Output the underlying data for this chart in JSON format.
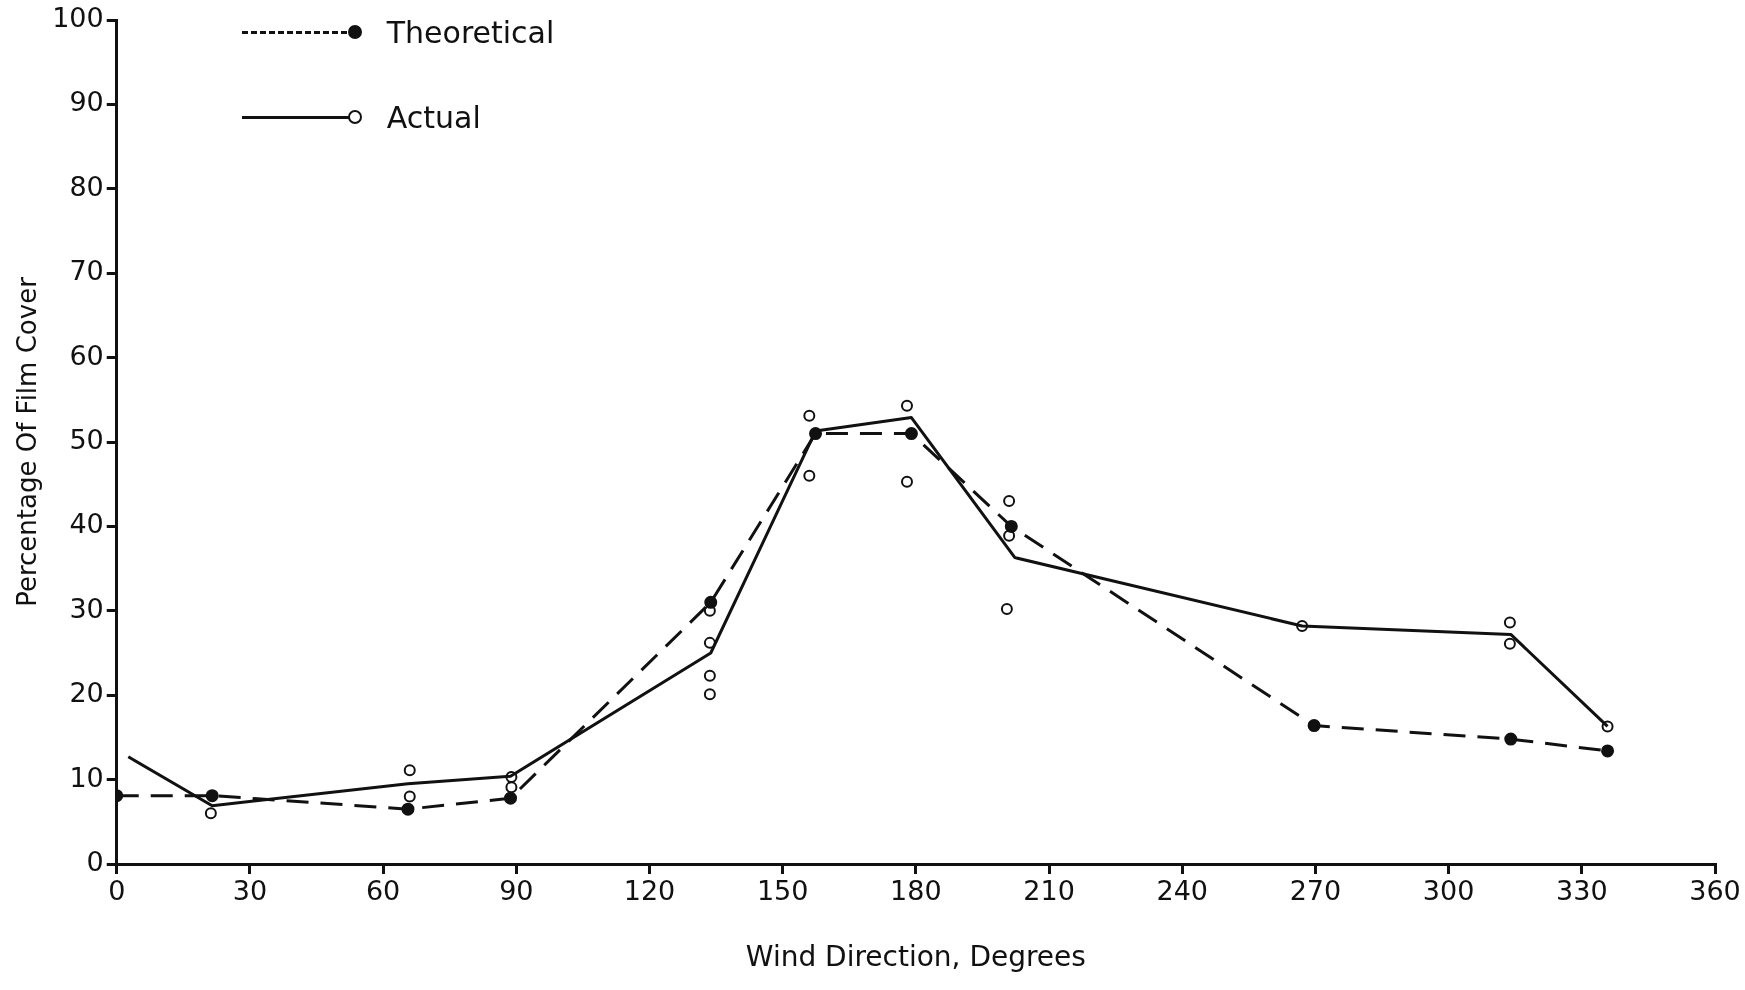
{
  "chart_data": {
    "type": "line",
    "xlabel": "Wind Direction, Degrees",
    "ylabel": "Percentage Of Film Cover",
    "xlim": [
      0,
      360
    ],
    "xticks": [
      0,
      30,
      60,
      90,
      120,
      150,
      180,
      210,
      240,
      270,
      300,
      330,
      360
    ],
    "ylim": [
      0,
      100
    ],
    "yticks": [
      0,
      10,
      20,
      30,
      40,
      50,
      60,
      70,
      80,
      90,
      100
    ],
    "grid": false,
    "legend": "top left",
    "series": [
      {
        "name": "Theoretical",
        "line_style": "dashed",
        "marker": "circle",
        "color": "#111111",
        "x": [
          0,
          21.5,
          65.6,
          88.7,
          133.8,
          157.4,
          179,
          201.5,
          269.7,
          314,
          335.8
        ],
        "values": [
          8.1,
          8.1,
          6.5,
          7.8,
          31,
          51,
          51,
          40,
          16.4,
          14.8,
          13.4
        ]
      },
      {
        "name": "Actual",
        "line_style": "solid",
        "marker": "none",
        "color": "#111111",
        "x": [
          2.6,
          21.5,
          65.6,
          88.7,
          133.8,
          157.4,
          179,
          202.3,
          267,
          314,
          335.8
        ],
        "values": [
          12.7,
          6.9,
          9.5,
          10.4,
          25,
          51.3,
          52.9,
          36.3,
          28.2,
          27.2,
          16.3
        ]
      },
      {
        "type": "scatter",
        "marker": "circle",
        "color": "#111111",
        "x": [
          21.2,
          66,
          66,
          88.9,
          88.9,
          133.6,
          133.6,
          133.6,
          133.6,
          156,
          156,
          178,
          178,
          201,
          201,
          200.5,
          267,
          313.8,
          313.8,
          335.8
        ],
        "values": [
          6,
          11.1,
          8,
          10.3,
          9.1,
          30,
          26.2,
          22.3,
          20.1,
          53.1,
          46,
          54.3,
          45.3,
          43,
          38.9,
          30.2,
          28.2,
          28.6,
          26.1,
          16.3
        ]
      }
    ]
  }
}
